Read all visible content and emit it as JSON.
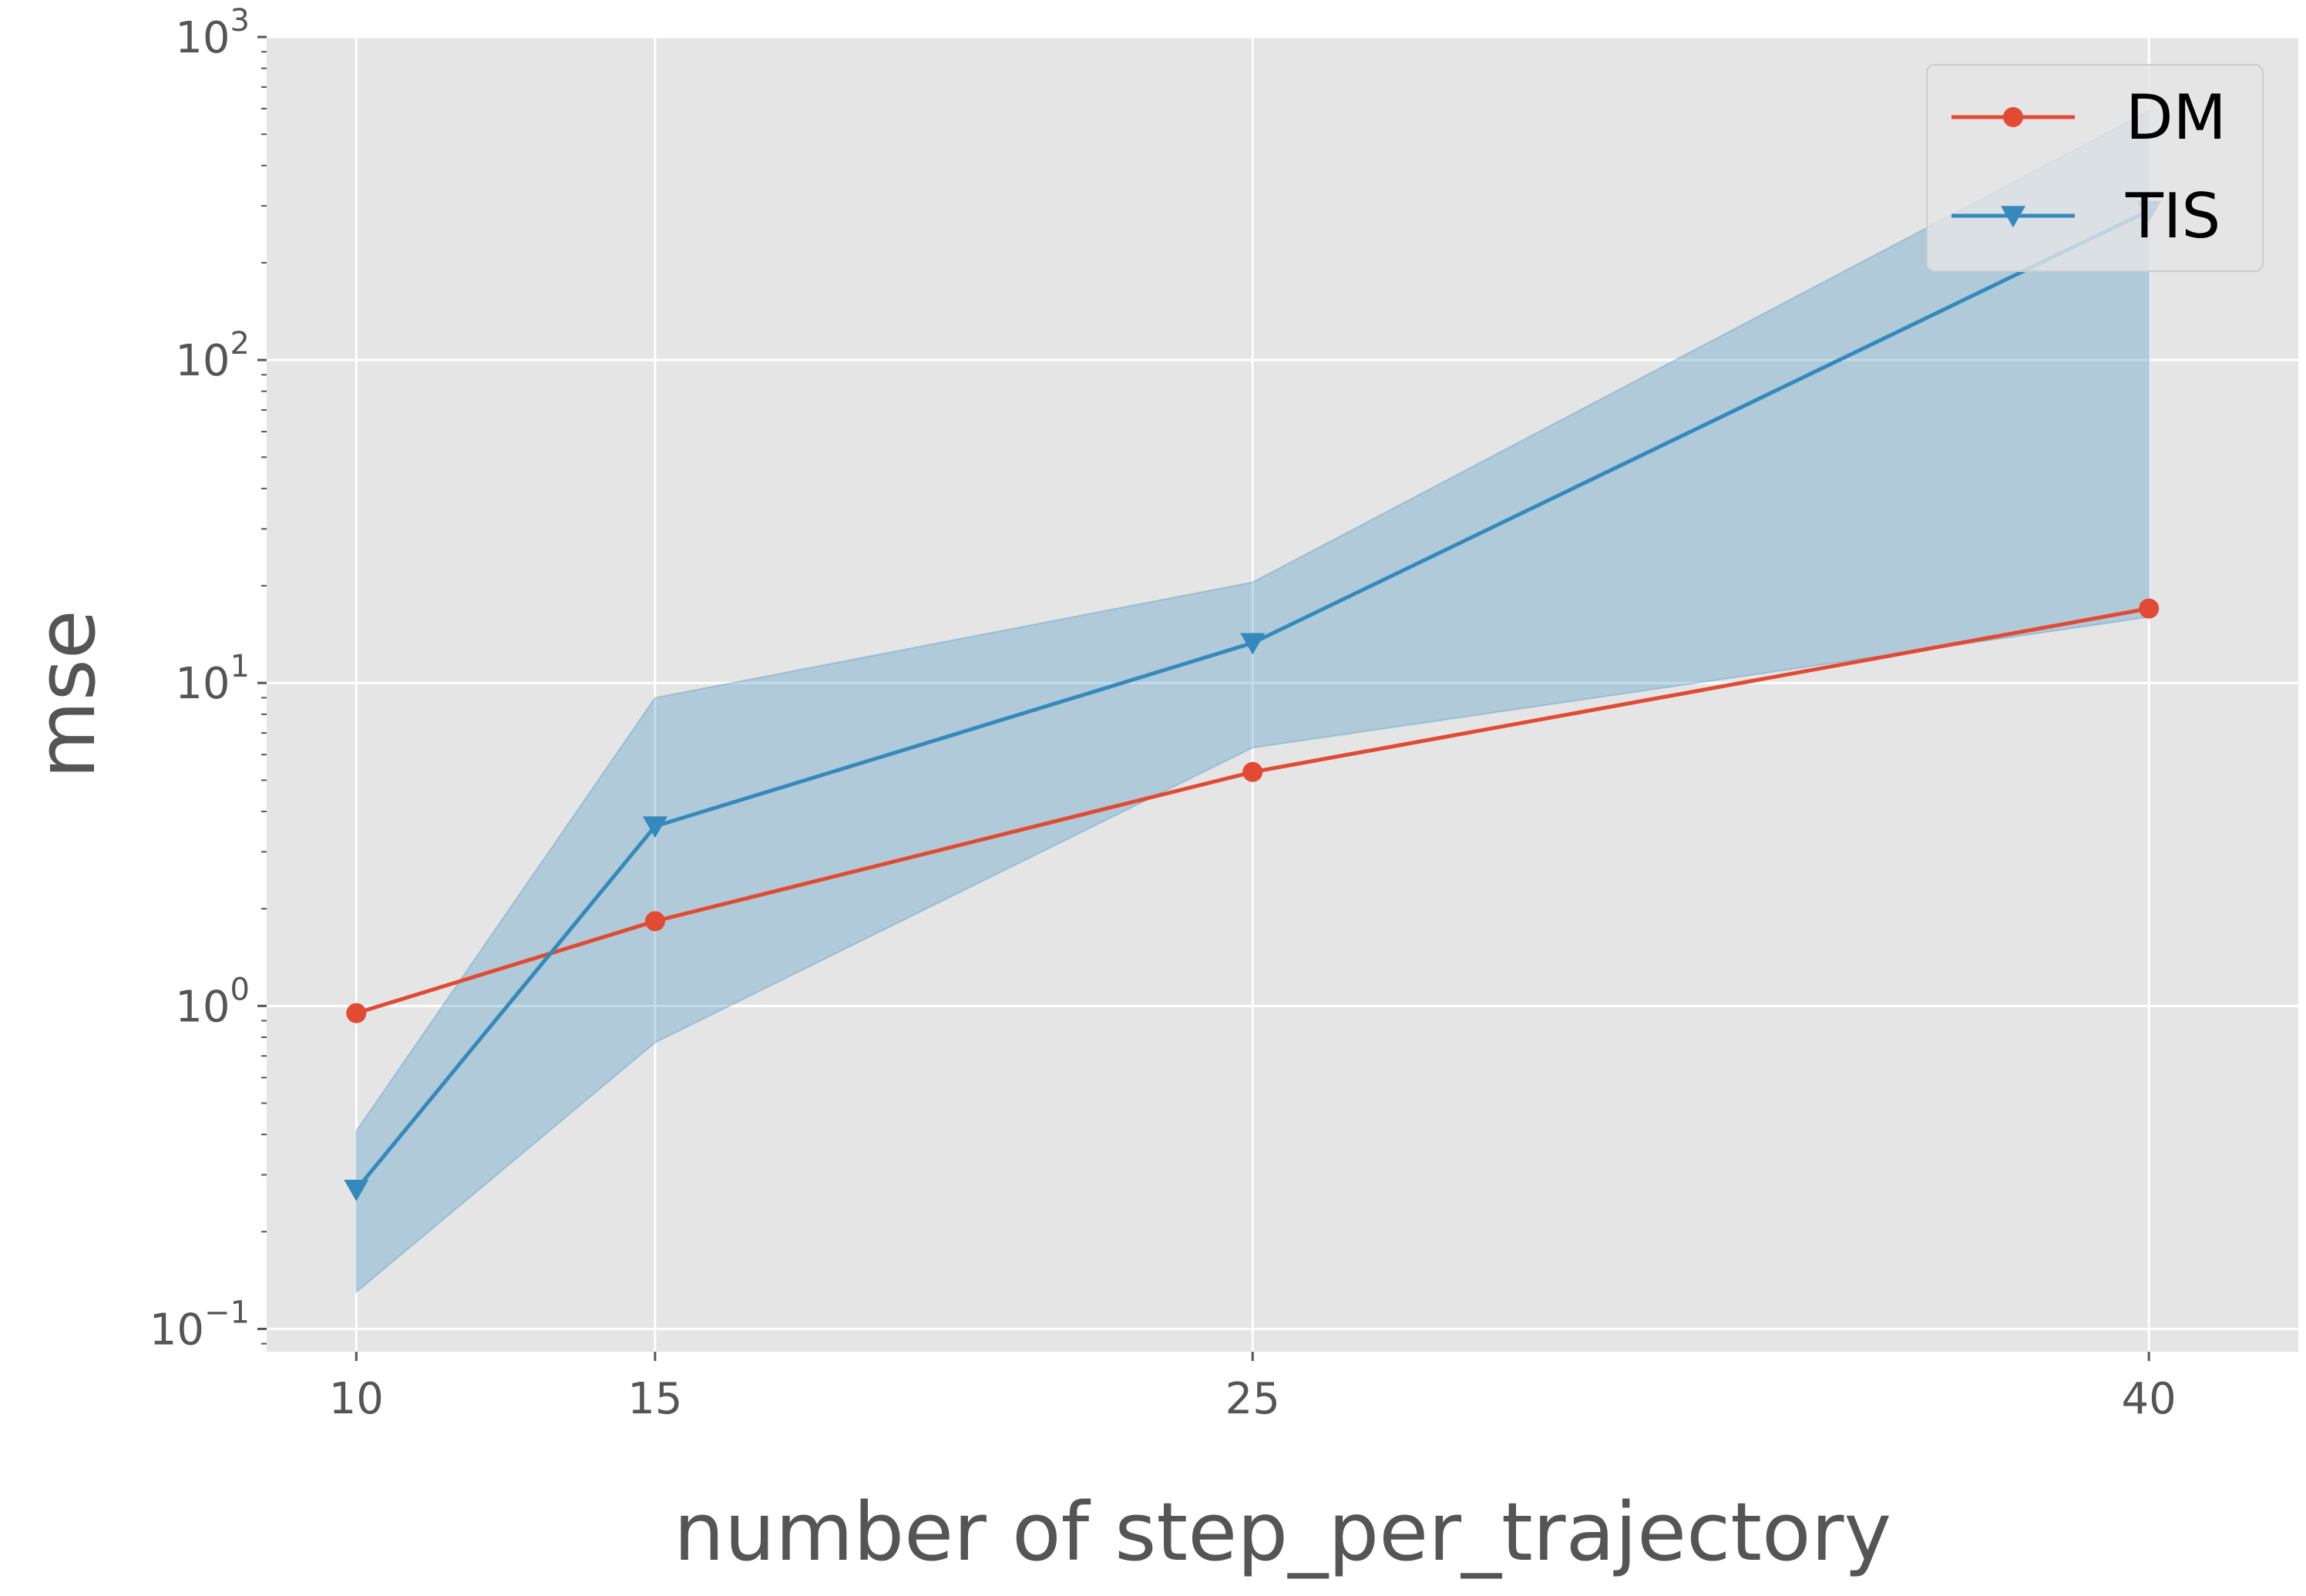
{
  "chart_data": {
    "type": "line",
    "xlabel": "number of step_per_trajectory",
    "ylabel": "mse",
    "yscale": "log",
    "xlim": [
      8.5,
      42.5
    ],
    "ylim": [
      0.085,
      1000
    ],
    "grid": true,
    "legend_position": "top-right",
    "x_ticks": [
      10,
      15,
      25,
      40
    ],
    "y_ticks": [
      {
        "value": 0.1,
        "base": "10",
        "exp": "−1"
      },
      {
        "value": 1,
        "base": "10",
        "exp": "0"
      },
      {
        "value": 10,
        "base": "10",
        "exp": "1"
      },
      {
        "value": 100,
        "base": "10",
        "exp": "2"
      },
      {
        "value": 1000,
        "base": "10",
        "exp": "3"
      }
    ],
    "x": [
      10,
      15,
      25,
      40
    ],
    "series": [
      {
        "name": "DM",
        "marker": "circle",
        "color": "#E24A33",
        "values": [
          0.95,
          1.83,
          5.3,
          17.0
        ]
      },
      {
        "name": "TIS",
        "marker": "triangle-down",
        "color": "#348ABD",
        "values": [
          0.27,
          3.6,
          13.3,
          290
        ],
        "band_lower": [
          0.13,
          0.77,
          6.3,
          16.0
        ],
        "band_upper": [
          0.41,
          9.0,
          20.5,
          590
        ]
      }
    ]
  }
}
